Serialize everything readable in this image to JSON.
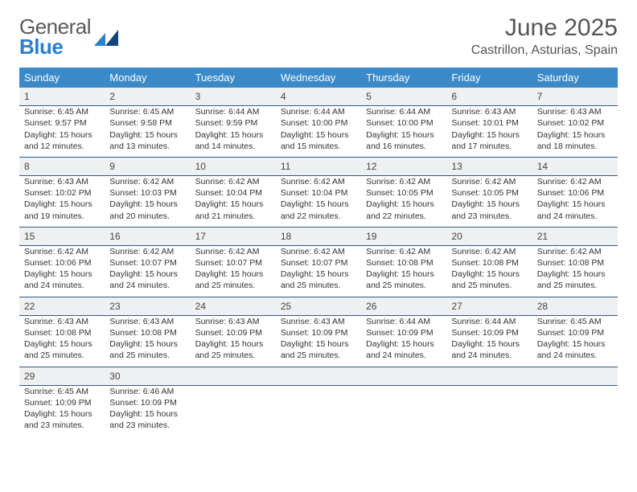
{
  "logo": {
    "word1": "General",
    "word2": "Blue",
    "color_word1": "#5a5a5a",
    "color_word2": "#2a7fcf"
  },
  "title": "June 2025",
  "location": "Castrillon, Asturias, Spain",
  "colors": {
    "header_bg": "#3a8ac9",
    "header_text": "#ffffff",
    "daynum_bg": "#eff0f1",
    "rule": "#2f5b87",
    "body_text": "#333333",
    "background": "#ffffff"
  },
  "day_names": [
    "Sunday",
    "Monday",
    "Tuesday",
    "Wednesday",
    "Thursday",
    "Friday",
    "Saturday"
  ],
  "weeks": [
    [
      {
        "n": "1",
        "sr": "Sunrise: 6:45 AM",
        "ss": "Sunset: 9:57 PM",
        "d1": "Daylight: 15 hours",
        "d2": "and 12 minutes."
      },
      {
        "n": "2",
        "sr": "Sunrise: 6:45 AM",
        "ss": "Sunset: 9:58 PM",
        "d1": "Daylight: 15 hours",
        "d2": "and 13 minutes."
      },
      {
        "n": "3",
        "sr": "Sunrise: 6:44 AM",
        "ss": "Sunset: 9:59 PM",
        "d1": "Daylight: 15 hours",
        "d2": "and 14 minutes."
      },
      {
        "n": "4",
        "sr": "Sunrise: 6:44 AM",
        "ss": "Sunset: 10:00 PM",
        "d1": "Daylight: 15 hours",
        "d2": "and 15 minutes."
      },
      {
        "n": "5",
        "sr": "Sunrise: 6:44 AM",
        "ss": "Sunset: 10:00 PM",
        "d1": "Daylight: 15 hours",
        "d2": "and 16 minutes."
      },
      {
        "n": "6",
        "sr": "Sunrise: 6:43 AM",
        "ss": "Sunset: 10:01 PM",
        "d1": "Daylight: 15 hours",
        "d2": "and 17 minutes."
      },
      {
        "n": "7",
        "sr": "Sunrise: 6:43 AM",
        "ss": "Sunset: 10:02 PM",
        "d1": "Daylight: 15 hours",
        "d2": "and 18 minutes."
      }
    ],
    [
      {
        "n": "8",
        "sr": "Sunrise: 6:43 AM",
        "ss": "Sunset: 10:02 PM",
        "d1": "Daylight: 15 hours",
        "d2": "and 19 minutes."
      },
      {
        "n": "9",
        "sr": "Sunrise: 6:42 AM",
        "ss": "Sunset: 10:03 PM",
        "d1": "Daylight: 15 hours",
        "d2": "and 20 minutes."
      },
      {
        "n": "10",
        "sr": "Sunrise: 6:42 AM",
        "ss": "Sunset: 10:04 PM",
        "d1": "Daylight: 15 hours",
        "d2": "and 21 minutes."
      },
      {
        "n": "11",
        "sr": "Sunrise: 6:42 AM",
        "ss": "Sunset: 10:04 PM",
        "d1": "Daylight: 15 hours",
        "d2": "and 22 minutes."
      },
      {
        "n": "12",
        "sr": "Sunrise: 6:42 AM",
        "ss": "Sunset: 10:05 PM",
        "d1": "Daylight: 15 hours",
        "d2": "and 22 minutes."
      },
      {
        "n": "13",
        "sr": "Sunrise: 6:42 AM",
        "ss": "Sunset: 10:05 PM",
        "d1": "Daylight: 15 hours",
        "d2": "and 23 minutes."
      },
      {
        "n": "14",
        "sr": "Sunrise: 6:42 AM",
        "ss": "Sunset: 10:06 PM",
        "d1": "Daylight: 15 hours",
        "d2": "and 24 minutes."
      }
    ],
    [
      {
        "n": "15",
        "sr": "Sunrise: 6:42 AM",
        "ss": "Sunset: 10:06 PM",
        "d1": "Daylight: 15 hours",
        "d2": "and 24 minutes."
      },
      {
        "n": "16",
        "sr": "Sunrise: 6:42 AM",
        "ss": "Sunset: 10:07 PM",
        "d1": "Daylight: 15 hours",
        "d2": "and 24 minutes."
      },
      {
        "n": "17",
        "sr": "Sunrise: 6:42 AM",
        "ss": "Sunset: 10:07 PM",
        "d1": "Daylight: 15 hours",
        "d2": "and 25 minutes."
      },
      {
        "n": "18",
        "sr": "Sunrise: 6:42 AM",
        "ss": "Sunset: 10:07 PM",
        "d1": "Daylight: 15 hours",
        "d2": "and 25 minutes."
      },
      {
        "n": "19",
        "sr": "Sunrise: 6:42 AM",
        "ss": "Sunset: 10:08 PM",
        "d1": "Daylight: 15 hours",
        "d2": "and 25 minutes."
      },
      {
        "n": "20",
        "sr": "Sunrise: 6:42 AM",
        "ss": "Sunset: 10:08 PM",
        "d1": "Daylight: 15 hours",
        "d2": "and 25 minutes."
      },
      {
        "n": "21",
        "sr": "Sunrise: 6:42 AM",
        "ss": "Sunset: 10:08 PM",
        "d1": "Daylight: 15 hours",
        "d2": "and 25 minutes."
      }
    ],
    [
      {
        "n": "22",
        "sr": "Sunrise: 6:43 AM",
        "ss": "Sunset: 10:08 PM",
        "d1": "Daylight: 15 hours",
        "d2": "and 25 minutes."
      },
      {
        "n": "23",
        "sr": "Sunrise: 6:43 AM",
        "ss": "Sunset: 10:08 PM",
        "d1": "Daylight: 15 hours",
        "d2": "and 25 minutes."
      },
      {
        "n": "24",
        "sr": "Sunrise: 6:43 AM",
        "ss": "Sunset: 10:09 PM",
        "d1": "Daylight: 15 hours",
        "d2": "and 25 minutes."
      },
      {
        "n": "25",
        "sr": "Sunrise: 6:43 AM",
        "ss": "Sunset: 10:09 PM",
        "d1": "Daylight: 15 hours",
        "d2": "and 25 minutes."
      },
      {
        "n": "26",
        "sr": "Sunrise: 6:44 AM",
        "ss": "Sunset: 10:09 PM",
        "d1": "Daylight: 15 hours",
        "d2": "and 24 minutes."
      },
      {
        "n": "27",
        "sr": "Sunrise: 6:44 AM",
        "ss": "Sunset: 10:09 PM",
        "d1": "Daylight: 15 hours",
        "d2": "and 24 minutes."
      },
      {
        "n": "28",
        "sr": "Sunrise: 6:45 AM",
        "ss": "Sunset: 10:09 PM",
        "d1": "Daylight: 15 hours",
        "d2": "and 24 minutes."
      }
    ],
    [
      {
        "n": "29",
        "sr": "Sunrise: 6:45 AM",
        "ss": "Sunset: 10:09 PM",
        "d1": "Daylight: 15 hours",
        "d2": "and 23 minutes."
      },
      {
        "n": "30",
        "sr": "Sunrise: 6:46 AM",
        "ss": "Sunset: 10:09 PM",
        "d1": "Daylight: 15 hours",
        "d2": "and 23 minutes."
      },
      null,
      null,
      null,
      null,
      null
    ]
  ]
}
